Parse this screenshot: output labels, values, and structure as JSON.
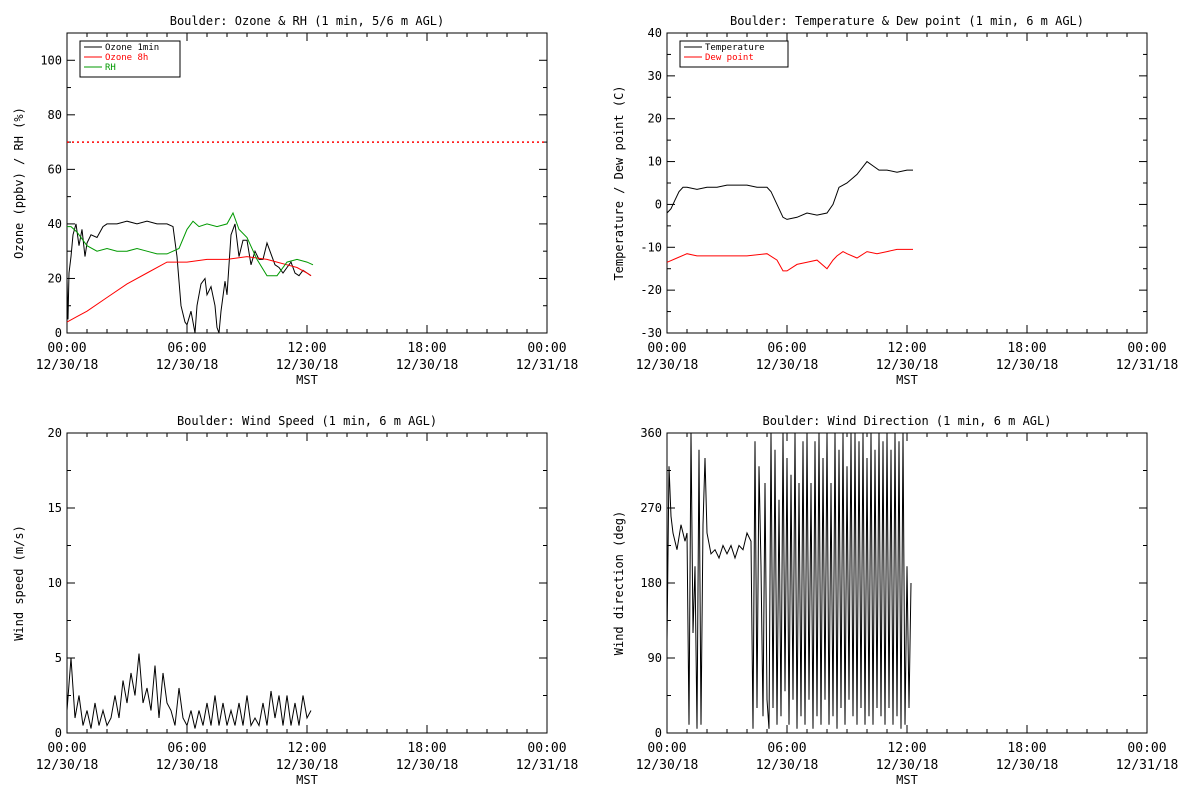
{
  "page": {
    "background": "#ffffff",
    "axis_color": "#000000"
  },
  "x_axis_common": {
    "range_hours": [
      0,
      24
    ],
    "tick_labels": [
      {
        "time": "00:00",
        "date": "12/30/18"
      },
      {
        "time": "06:00",
        "date": "12/30/18"
      },
      {
        "time": "12:00",
        "date": "12/30/18"
      },
      {
        "time": "18:00",
        "date": "12/30/18"
      },
      {
        "time": "00:00",
        "date": "12/31/18"
      }
    ],
    "xlabel": "MST"
  },
  "chart_data": [
    {
      "type": "line",
      "title": "Boulder: Ozone & RH (1 min, 5/6 m AGL)",
      "ylabel": "Ozone (ppbv) / RH (%)",
      "xlabel": "",
      "ylim": [
        0,
        110
      ],
      "yticks": [
        0,
        20,
        40,
        60,
        80,
        100
      ],
      "grid": false,
      "legend": "top-left",
      "reference_line": {
        "y": 70,
        "color": "#ff0000",
        "style": "dotted"
      },
      "series": [
        {
          "name": "Ozone 1min",
          "color": "#000000",
          "x": [
            0,
            0.05,
            0.1,
            0.2,
            0.3,
            0.45,
            0.6,
            0.75,
            0.9,
            1.0,
            1.2,
            1.5,
            1.8,
            2.0,
            2.5,
            3.0,
            3.5,
            4.0,
            4.5,
            5.0,
            5.3,
            5.5,
            5.7,
            5.9,
            6.0,
            6.2,
            6.4,
            6.5,
            6.7,
            6.9,
            7.0,
            7.2,
            7.4,
            7.5,
            7.6,
            7.7,
            7.9,
            8.0,
            8.2,
            8.4,
            8.6,
            8.8,
            9.0,
            9.2,
            9.4,
            9.6,
            9.8,
            10.0,
            10.2,
            10.4,
            10.6,
            10.8,
            11.0,
            11.2,
            11.4,
            11.6,
            11.8,
            12.0,
            12.2
          ],
          "values": [
            20,
            5,
            22,
            28,
            36,
            40,
            32,
            38,
            28,
            33,
            36,
            35,
            39,
            40,
            40,
            41,
            40,
            41,
            40,
            40,
            39,
            28,
            10,
            4,
            3,
            8,
            0,
            10,
            18,
            20,
            14,
            17,
            10,
            2,
            0,
            8,
            19,
            14,
            36,
            40,
            28,
            34,
            34,
            25,
            30,
            27,
            27,
            33,
            29,
            25,
            24,
            22,
            24,
            26,
            22,
            21,
            23,
            22,
            21
          ]
        },
        {
          "name": "Ozone 8h",
          "color": "#ff0000",
          "x": [
            0,
            0.5,
            1.0,
            2.0,
            3.0,
            4.0,
            5.0,
            5.5,
            6.0,
            7.0,
            8.0,
            9.0,
            10.0,
            10.5,
            11.0,
            11.5,
            12.0,
            12.2
          ],
          "values": [
            4,
            6,
            8,
            13,
            18,
            22,
            26,
            26,
            26,
            27,
            27,
            28,
            27,
            26,
            25,
            24,
            22,
            21
          ]
        },
        {
          "name": "RH",
          "color": "#009900",
          "x": [
            0,
            0.2,
            0.5,
            1.0,
            1.5,
            2.0,
            2.5,
            3.0,
            3.5,
            4.0,
            4.5,
            5.0,
            5.3,
            5.6,
            6.0,
            6.3,
            6.6,
            7.0,
            7.5,
            8.0,
            8.3,
            8.6,
            9.0,
            9.5,
            10.0,
            10.5,
            11.0,
            11.5,
            12.0,
            12.3
          ],
          "values": [
            39,
            39,
            37,
            32,
            30,
            31,
            30,
            30,
            31,
            30,
            29,
            29,
            30,
            31,
            38,
            41,
            39,
            40,
            39,
            40,
            44,
            38,
            35,
            27,
            21,
            21,
            26,
            27,
            26,
            25
          ]
        }
      ]
    },
    {
      "type": "line",
      "title": "Boulder: Temperature & Dew point (1 min, 6 m AGL)",
      "ylabel": "Temperature / Dew point (C)",
      "xlabel": "",
      "ylim": [
        -30,
        40
      ],
      "yticks": [
        -30,
        -20,
        -10,
        0,
        10,
        20,
        30,
        40
      ],
      "grid": false,
      "legend": "top-left",
      "series": [
        {
          "name": "Temperature",
          "color": "#000000",
          "x": [
            0,
            0.2,
            0.4,
            0.6,
            0.8,
            1.0,
            1.5,
            2.0,
            2.5,
            3.0,
            3.5,
            4.0,
            4.5,
            5.0,
            5.2,
            5.5,
            5.8,
            6.0,
            6.5,
            7.0,
            7.5,
            8.0,
            8.3,
            8.6,
            9.0,
            9.5,
            10.0,
            10.3,
            10.6,
            11.0,
            11.5,
            12.0,
            12.3
          ],
          "values": [
            -2,
            -1,
            1,
            3,
            4,
            4,
            3.5,
            4,
            4,
            4.5,
            4.5,
            4.5,
            4,
            4,
            3,
            0,
            -3,
            -3.5,
            -3,
            -2,
            -2.5,
            -2,
            0,
            4,
            5,
            7,
            10,
            9,
            8,
            8,
            7.5,
            8,
            8
          ]
        },
        {
          "name": "Dew point",
          "color": "#ff0000",
          "x": [
            0,
            0.5,
            1.0,
            1.5,
            2.0,
            3.0,
            4.0,
            5.0,
            5.5,
            5.8,
            6.0,
            6.5,
            7.0,
            7.5,
            8.0,
            8.3,
            8.5,
            8.8,
            9.0,
            9.5,
            10.0,
            10.5,
            11.0,
            11.5,
            12.0,
            12.3
          ],
          "values": [
            -13.5,
            -12.5,
            -11.5,
            -12,
            -12,
            -12,
            -12,
            -11.5,
            -13,
            -15.5,
            -15.5,
            -14,
            -13.5,
            -13,
            -15,
            -13,
            -12,
            -11,
            -11.5,
            -12.5,
            -11,
            -11.5,
            -11,
            -10.5,
            -10.5,
            -10.5
          ]
        }
      ]
    },
    {
      "type": "line",
      "title": "Boulder: Wind Speed (1 min, 6 m AGL)",
      "ylabel": "Wind speed (m/s)",
      "xlabel": "",
      "ylim": [
        0,
        20
      ],
      "yticks": [
        0,
        5,
        10,
        15,
        20
      ],
      "grid": false,
      "legend": "none",
      "series": [
        {
          "color": "#000000",
          "x": [
            0,
            0.2,
            0.4,
            0.6,
            0.8,
            1.0,
            1.2,
            1.4,
            1.6,
            1.8,
            2.0,
            2.2,
            2.4,
            2.6,
            2.8,
            3.0,
            3.2,
            3.4,
            3.6,
            3.8,
            4.0,
            4.2,
            4.4,
            4.6,
            4.8,
            5.0,
            5.2,
            5.4,
            5.6,
            5.8,
            6.0,
            6.2,
            6.4,
            6.6,
            6.8,
            7.0,
            7.2,
            7.4,
            7.6,
            7.8,
            8.0,
            8.2,
            8.4,
            8.6,
            8.8,
            9.0,
            9.2,
            9.4,
            9.6,
            9.8,
            10.0,
            10.2,
            10.4,
            10.6,
            10.8,
            11.0,
            11.2,
            11.4,
            11.6,
            11.8,
            12.0,
            12.2
          ],
          "values": [
            1.5,
            5,
            1,
            2.5,
            0.5,
            1.5,
            0.3,
            2,
            0.5,
            1.5,
            0.5,
            1,
            2.5,
            1,
            3.5,
            2,
            4,
            2.5,
            5.3,
            2,
            3,
            1.5,
            4.5,
            1,
            4,
            2,
            1.5,
            0.5,
            3,
            1,
            0.5,
            1.5,
            0.3,
            1.5,
            0.5,
            2,
            0.5,
            2.5,
            0.5,
            2,
            0.5,
            1.5,
            0.5,
            2,
            0.5,
            2.5,
            0.5,
            1,
            0.5,
            2,
            0.5,
            2.8,
            1,
            2.5,
            0.5,
            2.5,
            0.5,
            2,
            0.5,
            2.5,
            1,
            1.5
          ]
        }
      ]
    },
    {
      "type": "line",
      "title": "Boulder: Wind Direction (1 min, 6 m AGL)",
      "ylabel": "Wind direction (deg)",
      "xlabel": "",
      "ylim": [
        0,
        360
      ],
      "yticks": [
        0,
        90,
        180,
        270,
        360
      ],
      "grid": false,
      "legend": "none",
      "series": [
        {
          "color": "#000000",
          "x": [
            0,
            0.1,
            0.2,
            0.3,
            0.5,
            0.7,
            0.9,
            1.0,
            1.1,
            1.2,
            1.3,
            1.4,
            1.5,
            1.6,
            1.7,
            1.8,
            1.9,
            2.0,
            2.2,
            2.4,
            2.6,
            2.8,
            3.0,
            3.2,
            3.4,
            3.6,
            3.8,
            4.0,
            4.2,
            4.3,
            4.4,
            4.5,
            4.6,
            4.7,
            4.8,
            4.9,
            5.0,
            5.1,
            5.2,
            5.3,
            5.4,
            5.5,
            5.6,
            5.7,
            5.8,
            5.9,
            6.0,
            6.1,
            6.2,
            6.3,
            6.4,
            6.5,
            6.6,
            6.7,
            6.8,
            6.9,
            7.0,
            7.1,
            7.2,
            7.3,
            7.4,
            7.5,
            7.6,
            7.7,
            7.8,
            7.9,
            8.0,
            8.1,
            8.2,
            8.3,
            8.4,
            8.5,
            8.6,
            8.7,
            8.8,
            8.9,
            9.0,
            9.1,
            9.2,
            9.3,
            9.4,
            9.5,
            9.6,
            9.7,
            9.8,
            9.9,
            10.0,
            10.1,
            10.2,
            10.3,
            10.4,
            10.5,
            10.6,
            10.7,
            10.8,
            10.9,
            11.0,
            11.1,
            11.2,
            11.3,
            11.4,
            11.5,
            11.6,
            11.7,
            11.8,
            11.9,
            12.0,
            12.1,
            12.2
          ],
          "values": [
            110,
            320,
            260,
            240,
            220,
            250,
            230,
            240,
            10,
            360,
            120,
            200,
            5,
            340,
            10,
            250,
            330,
            240,
            215,
            220,
            210,
            225,
            215,
            225,
            210,
            225,
            220,
            240,
            230,
            5,
            350,
            30,
            320,
            200,
            20,
            300,
            40,
            5,
            360,
            30,
            340,
            10,
            280,
            20,
            360,
            50,
            330,
            10,
            310,
            40,
            360,
            5,
            300,
            20,
            350,
            10,
            360,
            40,
            300,
            5,
            350,
            20,
            360,
            10,
            330,
            40,
            360,
            10,
            300,
            20,
            360,
            5,
            340,
            30,
            360,
            10,
            320,
            40,
            360,
            20,
            360,
            10,
            350,
            30,
            360,
            10,
            330,
            20,
            360,
            10,
            340,
            30,
            360,
            20,
            350,
            10,
            360,
            30,
            340,
            10,
            360,
            20,
            350,
            5,
            360,
            10,
            200,
            30,
            180
          ]
        }
      ]
    }
  ]
}
